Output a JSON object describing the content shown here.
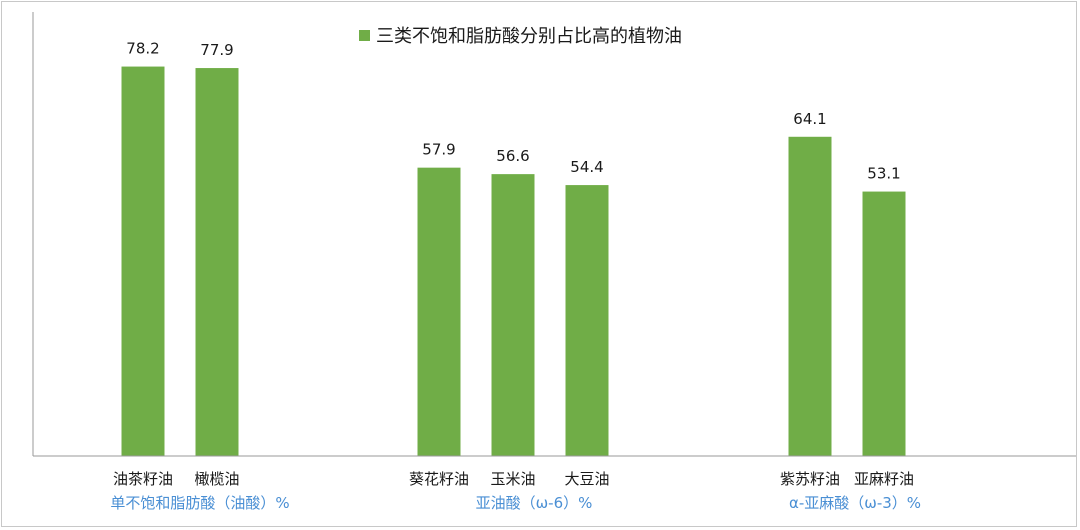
{
  "chart_data": {
    "type": "bar",
    "title": "",
    "legend": {
      "label": "三类不饱和脂肪酸分别占比高的植物油",
      "position": "top",
      "color": "#70AD47"
    },
    "bar_color": "#70AD47",
    "axis_color": "#9a9a9a",
    "group_label_color": "#4a8fd4",
    "ylim": [
      0,
      85
    ],
    "grid": false,
    "groups": [
      {
        "label": "单不饱和脂肪酸（油酸）%",
        "items": [
          {
            "name": "油茶籽油",
            "value": 78.2,
            "value_label": "78.2"
          },
          {
            "name": "橄榄油",
            "value": 77.9,
            "value_label": "77.9"
          }
        ]
      },
      {
        "label": "亚油酸（ω-6）%",
        "items": [
          {
            "name": "葵花籽油",
            "value": 57.9,
            "value_label": "57.9"
          },
          {
            "name": "玉米油",
            "value": 56.6,
            "value_label": "56.6"
          },
          {
            "name": "大豆油",
            "value": 54.4,
            "value_label": "54.4"
          }
        ]
      },
      {
        "label": "α-亚麻酸（ω-3）%",
        "items": [
          {
            "name": "紫苏籽油",
            "value": 64.1,
            "value_label": "64.1"
          },
          {
            "name": "亚麻籽油",
            "value": 53.1,
            "value_label": "53.1"
          }
        ]
      }
    ]
  }
}
